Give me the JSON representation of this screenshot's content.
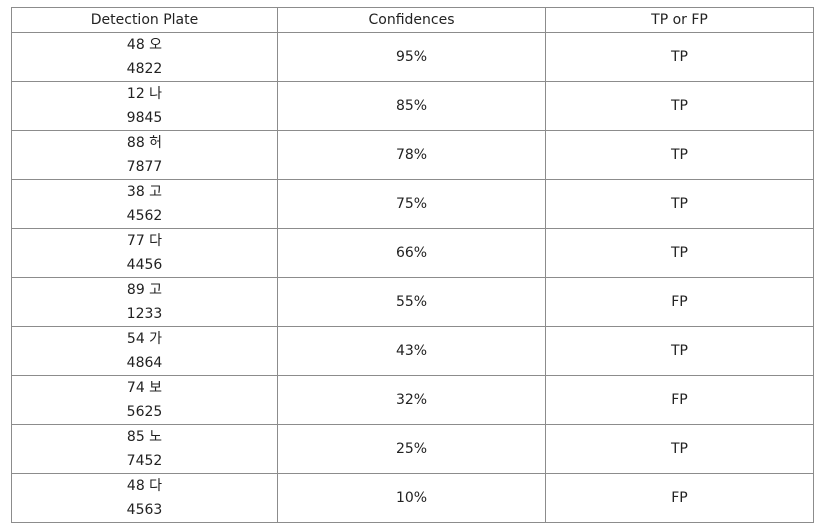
{
  "table": {
    "headers": [
      "Detection Plate",
      "Confidences",
      "TP or FP"
    ],
    "rows": [
      {
        "plate_line1": "48 오",
        "plate_line2": "4822",
        "confidence": "95%",
        "result": "TP"
      },
      {
        "plate_line1": "12 나",
        "plate_line2": "9845",
        "confidence": "85%",
        "result": "TP"
      },
      {
        "plate_line1": "88 허",
        "plate_line2": "7877",
        "confidence": "78%",
        "result": "TP"
      },
      {
        "plate_line1": "38 고",
        "plate_line2": "4562",
        "confidence": "75%",
        "result": "TP"
      },
      {
        "plate_line1": "77 다",
        "plate_line2": "4456",
        "confidence": "66%",
        "result": "TP"
      },
      {
        "plate_line1": "89 고",
        "plate_line2": "1233",
        "confidence": "55%",
        "result": "FP"
      },
      {
        "plate_line1": "54 가",
        "plate_line2": "4864",
        "confidence": "43%",
        "result": "TP"
      },
      {
        "plate_line1": "74 보",
        "plate_line2": "5625",
        "confidence": "32%",
        "result": "FP"
      },
      {
        "plate_line1": "85 노",
        "plate_line2": "7452",
        "confidence": "25%",
        "result": "TP"
      },
      {
        "plate_line1": "48 다",
        "plate_line2": "4563",
        "confidence": "10%",
        "result": "FP"
      }
    ]
  }
}
